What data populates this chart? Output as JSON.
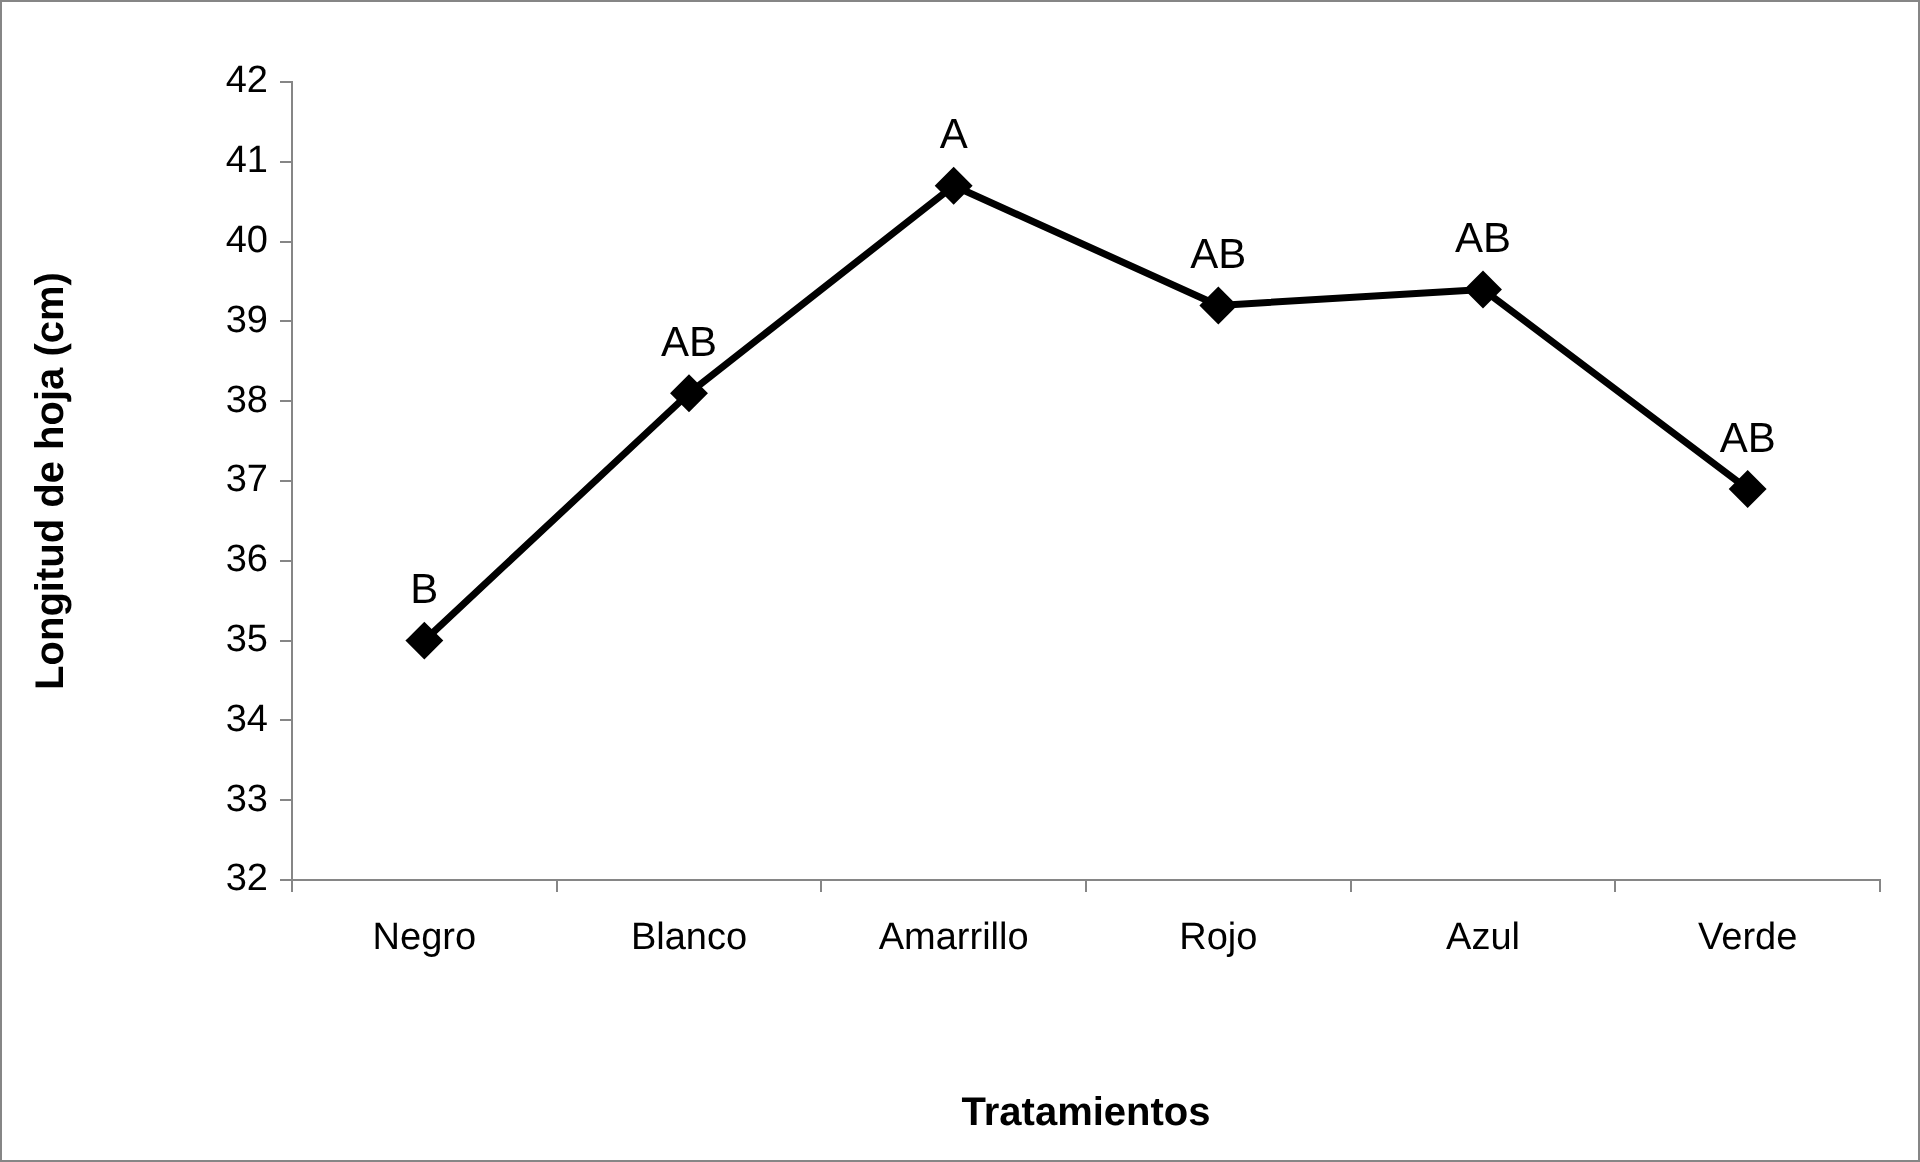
{
  "chart_data": {
    "type": "line",
    "xlabel": "Tratamientos",
    "ylabel": "Longitud de hoja (cm)",
    "categories": [
      "Negro",
      "Blanco",
      "Amarrillo",
      "Rojo",
      "Azul",
      "Verde"
    ],
    "values": [
      35.0,
      38.1,
      40.7,
      39.2,
      39.4,
      36.9
    ],
    "color": "#000000",
    "marker": "diamond",
    "line_style": "solid",
    "grid": false,
    "legend": false,
    "ylim": [
      32,
      42
    ],
    "yticks": [
      32,
      33,
      34,
      35,
      36,
      37,
      38,
      39,
      40,
      41,
      42
    ],
    "annotations": [
      {
        "text": "B",
        "x": "Negro",
        "y": 35.0
      },
      {
        "text": "AB",
        "x": "Blanco",
        "y": 38.1
      },
      {
        "text": "A",
        "x": "Amarrillo",
        "y": 40.7
      },
      {
        "text": "AB",
        "x": "Rojo",
        "y": 39.2
      },
      {
        "text": "AB",
        "x": "Azul",
        "y": 39.4
      },
      {
        "text": "AB",
        "x": "Verde",
        "y": 36.9
      }
    ]
  }
}
